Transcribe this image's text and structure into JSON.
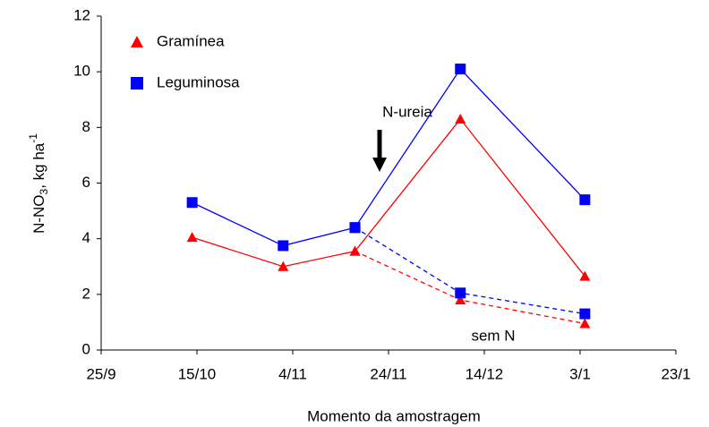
{
  "chart_data": {
    "type": "line",
    "x_label": "Momento da amostragem",
    "y_label": {
      "main": "N-NO",
      "sub": "3",
      "unit": ", kg ha",
      "sup": "-1"
    },
    "x": [
      19,
      38,
      53,
      75,
      101
    ],
    "xlim": [
      0,
      120
    ],
    "xticks": [
      {
        "value": 0,
        "label": "25/9"
      },
      {
        "value": 20,
        "label": "15/10"
      },
      {
        "value": 40,
        "label": "4/11"
      },
      {
        "value": 60,
        "label": "24/11"
      },
      {
        "value": 80,
        "label": "14/12"
      },
      {
        "value": 100,
        "label": "3/1"
      },
      {
        "value": 120,
        "label": "23/1"
      }
    ],
    "ylim": [
      0,
      12
    ],
    "yticks": [
      0,
      2,
      4,
      6,
      8,
      10,
      12
    ],
    "series": [
      {
        "name": "Gramínea",
        "color": "#ff0000",
        "marker": "triangle",
        "values": [
          4.05,
          3.0,
          3.55,
          8.3,
          2.65
        ],
        "sem_n": [
          null,
          null,
          3.55,
          1.8,
          0.95
        ]
      },
      {
        "name": "Leguminosa",
        "color": "#0000ff",
        "marker": "square",
        "values": [
          5.3,
          3.75,
          4.4,
          10.1,
          5.4
        ],
        "sem_n": [
          null,
          null,
          4.4,
          2.05,
          1.3
        ]
      }
    ],
    "annotations": {
      "n_ureia": "N-ureia",
      "sem_n": "sem N"
    }
  }
}
